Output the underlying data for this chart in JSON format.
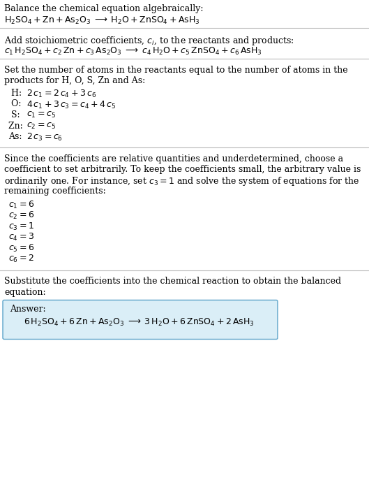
{
  "bg_color": "#ffffff",
  "text_color": "#000000",
  "answer_box_color": "#daeef7",
  "answer_box_edge": "#5ba3c9",
  "figsize": [
    5.29,
    6.87
  ],
  "dpi": 100,
  "section1_title": "Balance the chemical equation algebraically:",
  "section1_eq": "$\\mathrm{H_2SO_4 + Zn + As_2O_3 \\;\\longrightarrow\\; H_2O + ZnSO_4 + AsH_3}$",
  "section2_title": "Add stoichiometric coefficients, $c_i$, to the reactants and products:",
  "section2_eq": "$c_1\\,\\mathrm{H_2SO_4} + c_2\\,\\mathrm{Zn} + c_3\\,\\mathrm{As_2O_3} \\;\\longrightarrow\\; c_4\\,\\mathrm{H_2O} + c_5\\,\\mathrm{ZnSO_4} + c_6\\,\\mathrm{AsH_3}$",
  "section3_title_line1": "Set the number of atoms in the reactants equal to the number of atoms in the",
  "section3_title_line2": "products for H, O, S, Zn and As:",
  "section3_lines": [
    [
      " H: ",
      "$2\\,c_1 = 2\\,c_4 + 3\\,c_6$"
    ],
    [
      " O: ",
      "$4\\,c_1 + 3\\,c_3 = c_4 + 4\\,c_5$"
    ],
    [
      " S: ",
      "$c_1 = c_5$"
    ],
    [
      "Zn: ",
      "$c_2 = c_5$"
    ],
    [
      "As: ",
      "$2\\,c_3 = c_6$"
    ]
  ],
  "section4_title_lines": [
    "Since the coefficients are relative quantities and underdetermined, choose a",
    "coefficient to set arbitrarily. To keep the coefficients small, the arbitrary value is",
    "ordinarily one. For instance, set $c_3 = 1$ and solve the system of equations for the",
    "remaining coefficients:"
  ],
  "section4_lines": [
    "$c_1 = 6$",
    "$c_2 = 6$",
    "$c_3 = 1$",
    "$c_4 = 3$",
    "$c_5 = 6$",
    "$c_6 = 2$"
  ],
  "section5_title_line1": "Substitute the coefficients into the chemical reaction to obtain the balanced",
  "section5_title_line2": "equation:",
  "answer_label": "Answer:",
  "answer_eq": "$6\\,\\mathrm{H_2SO_4} + 6\\,\\mathrm{Zn} + \\mathrm{As_2O_3} \\;\\longrightarrow\\; 3\\,\\mathrm{H_2O} + 6\\,\\mathrm{ZnSO_4} + 2\\,\\mathrm{AsH_3}$"
}
